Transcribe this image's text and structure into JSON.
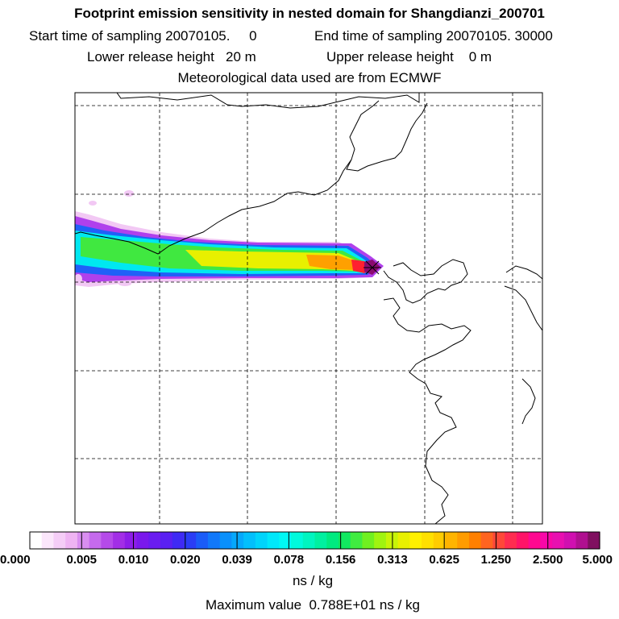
{
  "header": {
    "title": "Footprint emission sensitivity in nested domain for Shangdianzi_200701",
    "start_label": "Start time of sampling 20070105.     0",
    "end_label": "End time of sampling 20070105. 30000",
    "lower_height_label": "Lower release height   20 m",
    "upper_height_label": "Upper release height    0 m",
    "met_label": "Meteorological data used are from ECMWF"
  },
  "colorbar": {
    "ticks": [
      "0.000",
      "0.005",
      "0.010",
      "0.020",
      "0.039",
      "0.078",
      "0.156",
      "0.313",
      "0.625",
      "1.250",
      "2.500",
      "5.000"
    ],
    "colors": [
      "#ffffff",
      "#fbe6fb",
      "#f5cdf7",
      "#efb4f3",
      "#d98ef0",
      "#c56aed",
      "#b54ae9",
      "#a22ee6",
      "#8d1de8",
      "#7a18ec",
      "#6a1cf0",
      "#5a20f2",
      "#3f2af4",
      "#2a3df6",
      "#1a5cf8",
      "#1178fa",
      "#0a90fb",
      "#05a8fc",
      "#02bffc",
      "#00d4fb",
      "#00e8fa",
      "#00f8f4",
      "#00fadc",
      "#00f5c0",
      "#00f0a0",
      "#00ea80",
      "#10e860",
      "#40ec40",
      "#70f020",
      "#a0f410",
      "#c8f408",
      "#e8f000",
      "#fff000",
      "#ffe000",
      "#ffcc00",
      "#ffb400",
      "#ff9c00",
      "#ff8000",
      "#ff6420",
      "#ff4838",
      "#ff2c50",
      "#ff1468",
      "#ff0890",
      "#f808a8",
      "#e810b0",
      "#d010b0",
      "#b01090",
      "#801060"
    ],
    "units": "ns / kg",
    "max_label": "Maximum value  0.788E+01 ns / kg"
  },
  "map": {
    "receptor_marker": "receptor-cross-icon",
    "plume_colors": {
      "outer": "#f2c8f4",
      "purple": "#b040ec",
      "blue": "#2060f8",
      "cyan": "#00e8f0",
      "green": "#40e840",
      "yellow": "#e8f000",
      "orange": "#ffa000",
      "red": "#ff2030",
      "core": "#8a0a70"
    }
  }
}
